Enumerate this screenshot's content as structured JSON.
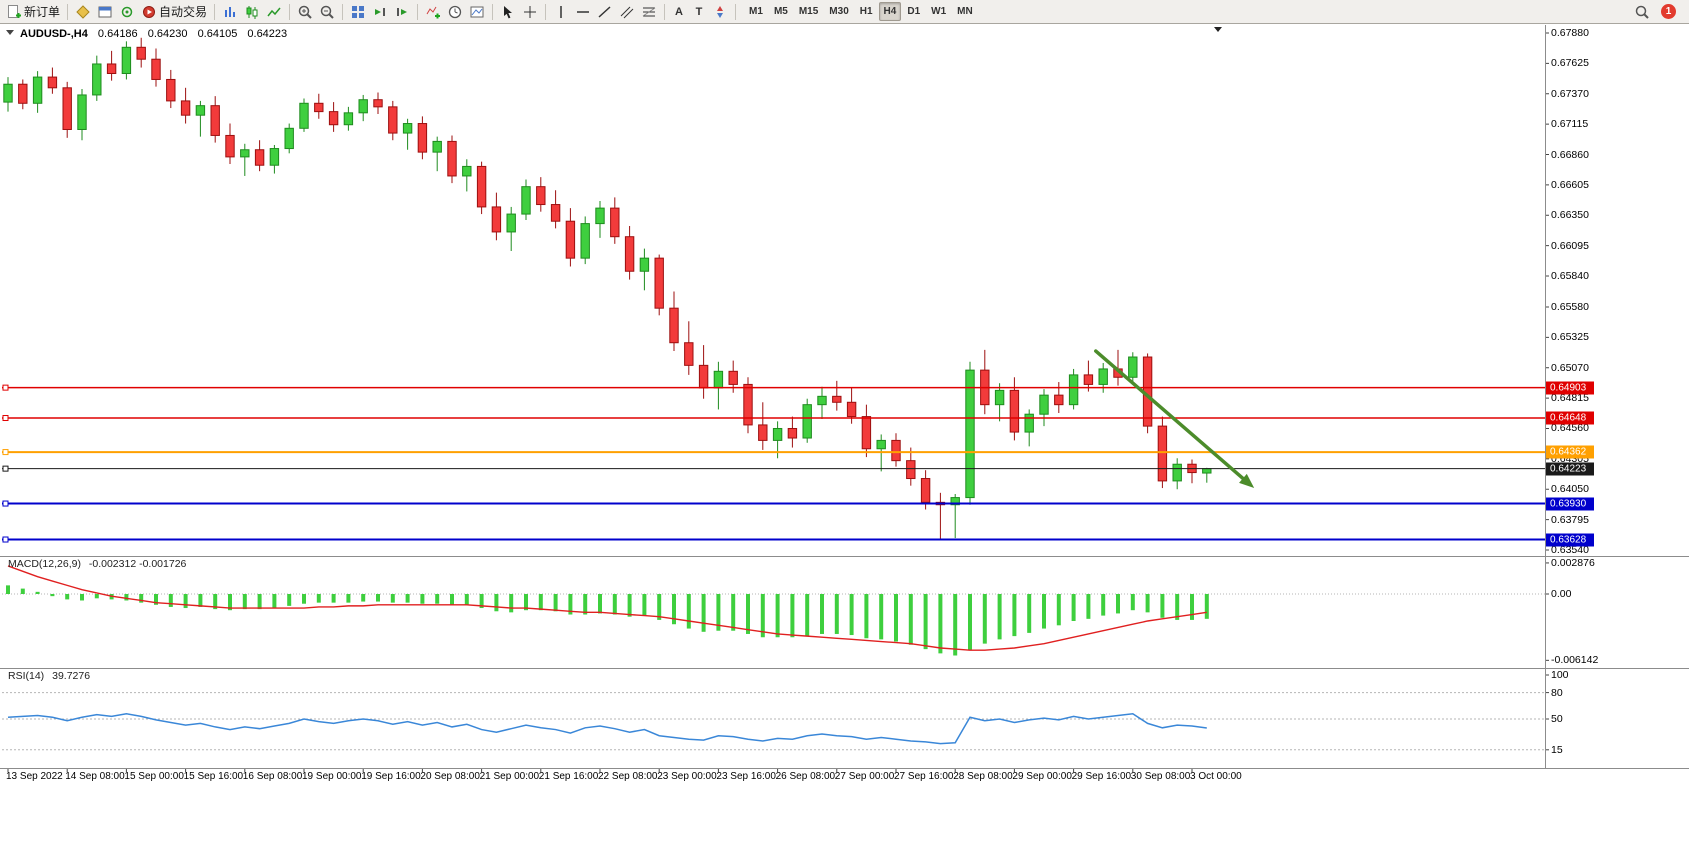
{
  "toolbar": {
    "new_order_label": "新订单",
    "auto_trading_label": "自动交易",
    "timeframes": [
      "M1",
      "M5",
      "M15",
      "M30",
      "H1",
      "H4",
      "D1",
      "W1",
      "MN"
    ],
    "active_timeframe": "H4",
    "notification_count": "1"
  },
  "header": {
    "symbol_period": "AUDUSD-,H4",
    "open": "0.64186",
    "high": "0.64230",
    "low": "0.64105",
    "close": "0.64223"
  },
  "colors": {
    "up": "#3fcf3f",
    "up_border": "#1e8b1e",
    "down": "#f23b3b",
    "down_border": "#9c0f0f",
    "macd_hist": "#3ecf3e",
    "macd_signal": "#e02020",
    "rsi_line": "#3a87d8",
    "grid": "#b5b5b5"
  },
  "chart_data": {
    "type": "candlestick",
    "symbol": "AUDUSD-",
    "timeframe": "H4",
    "price_axis_labels": [
      "0.67880",
      "0.67625",
      "0.67370",
      "0.67115",
      "0.66860",
      "0.66605",
      "0.66350",
      "0.66095",
      "0.65840",
      "0.65580",
      "0.65325",
      "0.65070",
      "0.64815",
      "0.64560",
      "0.64305",
      "0.64050",
      "0.63795",
      "0.63540"
    ],
    "price_axis_top": 0.6788,
    "price_axis_bottom": 0.6354,
    "time_labels": [
      "13 Sep 2022",
      "14 Sep 08:00",
      "15 Sep 00:00",
      "15 Sep 16:00",
      "16 Sep 08:00",
      "19 Sep 00:00",
      "19 Sep 16:00",
      "20 Sep 08:00",
      "21 Sep 00:00",
      "21 Sep 16:00",
      "22 Sep 08:00",
      "23 Sep 00:00",
      "23 Sep 16:00",
      "26 Sep 08:00",
      "27 Sep 00:00",
      "27 Sep 16:00",
      "28 Sep 08:00",
      "29 Sep 00:00",
      "29 Sep 16:00",
      "30 Sep 08:00",
      "3 Oct 00:00"
    ],
    "label_every_n_candles": 4,
    "candles": [
      [
        0.673,
        0.6751,
        0.6722,
        0.6745
      ],
      [
        0.6745,
        0.6749,
        0.6724,
        0.6729
      ],
      [
        0.6729,
        0.6756,
        0.6721,
        0.6751
      ],
      [
        0.6751,
        0.6759,
        0.6737,
        0.6742
      ],
      [
        0.6742,
        0.6747,
        0.67,
        0.6707
      ],
      [
        0.6707,
        0.6741,
        0.6698,
        0.6736
      ],
      [
        0.6736,
        0.6769,
        0.6731,
        0.6762
      ],
      [
        0.6762,
        0.6773,
        0.6748,
        0.6754
      ],
      [
        0.6754,
        0.6781,
        0.6749,
        0.6776
      ],
      [
        0.6776,
        0.6784,
        0.6759,
        0.6766
      ],
      [
        0.6766,
        0.6775,
        0.6743,
        0.6749
      ],
      [
        0.6749,
        0.6757,
        0.6725,
        0.6731
      ],
      [
        0.6731,
        0.6742,
        0.6712,
        0.6719
      ],
      [
        0.6719,
        0.6731,
        0.6701,
        0.6727
      ],
      [
        0.6727,
        0.6735,
        0.6696,
        0.6702
      ],
      [
        0.6702,
        0.6712,
        0.6678,
        0.6684
      ],
      [
        0.6684,
        0.6695,
        0.6668,
        0.669
      ],
      [
        0.669,
        0.6698,
        0.6672,
        0.6677
      ],
      [
        0.6677,
        0.6694,
        0.667,
        0.6691
      ],
      [
        0.6691,
        0.6712,
        0.6687,
        0.6708
      ],
      [
        0.6708,
        0.6733,
        0.6705,
        0.6729
      ],
      [
        0.6729,
        0.6737,
        0.6716,
        0.6722
      ],
      [
        0.6722,
        0.673,
        0.6705,
        0.6711
      ],
      [
        0.6711,
        0.6726,
        0.6706,
        0.6721
      ],
      [
        0.6721,
        0.6736,
        0.6714,
        0.6732
      ],
      [
        0.6732,
        0.6738,
        0.672,
        0.6726
      ],
      [
        0.6726,
        0.6731,
        0.6698,
        0.6704
      ],
      [
        0.6704,
        0.6716,
        0.669,
        0.6712
      ],
      [
        0.6712,
        0.6718,
        0.6682,
        0.6688
      ],
      [
        0.6688,
        0.6701,
        0.6672,
        0.6697
      ],
      [
        0.6697,
        0.6702,
        0.6662,
        0.6668
      ],
      [
        0.6668,
        0.6682,
        0.6655,
        0.6676
      ],
      [
        0.6676,
        0.668,
        0.6636,
        0.6642
      ],
      [
        0.6642,
        0.6654,
        0.6614,
        0.6621
      ],
      [
        0.6621,
        0.6642,
        0.6605,
        0.6636
      ],
      [
        0.6636,
        0.6665,
        0.6631,
        0.6659
      ],
      [
        0.6659,
        0.6667,
        0.6638,
        0.6644
      ],
      [
        0.6644,
        0.6656,
        0.6624,
        0.663
      ],
      [
        0.663,
        0.6641,
        0.6592,
        0.6599
      ],
      [
        0.6599,
        0.6634,
        0.6594,
        0.6628
      ],
      [
        0.6628,
        0.6647,
        0.6616,
        0.6641
      ],
      [
        0.6641,
        0.665,
        0.6611,
        0.6617
      ],
      [
        0.6617,
        0.6626,
        0.6581,
        0.6588
      ],
      [
        0.6588,
        0.6607,
        0.6572,
        0.6599
      ],
      [
        0.6599,
        0.6602,
        0.6551,
        0.6557
      ],
      [
        0.6557,
        0.6571,
        0.6521,
        0.6528
      ],
      [
        0.6528,
        0.6546,
        0.6501,
        0.6509
      ],
      [
        0.6509,
        0.6526,
        0.6481,
        0.649
      ],
      [
        0.649,
        0.6512,
        0.6472,
        0.6504
      ],
      [
        0.6504,
        0.6513,
        0.6486,
        0.6493
      ],
      [
        0.6493,
        0.6499,
        0.6452,
        0.6459
      ],
      [
        0.6459,
        0.6478,
        0.6438,
        0.6446
      ],
      [
        0.6446,
        0.6462,
        0.6431,
        0.6456
      ],
      [
        0.6456,
        0.6466,
        0.644,
        0.6448
      ],
      [
        0.6448,
        0.6481,
        0.6444,
        0.6476
      ],
      [
        0.6476,
        0.6491,
        0.6464,
        0.6483
      ],
      [
        0.6483,
        0.6496,
        0.6471,
        0.6478
      ],
      [
        0.6478,
        0.649,
        0.646,
        0.6466
      ],
      [
        0.6466,
        0.6476,
        0.6432,
        0.6439
      ],
      [
        0.6439,
        0.6451,
        0.642,
        0.6446
      ],
      [
        0.6446,
        0.6452,
        0.6424,
        0.6429
      ],
      [
        0.6429,
        0.644,
        0.6408,
        0.6414
      ],
      [
        0.6414,
        0.6421,
        0.6388,
        0.6394
      ],
      [
        0.6394,
        0.6402,
        0.6363,
        0.6392
      ],
      [
        0.6392,
        0.6401,
        0.6364,
        0.6398
      ],
      [
        0.6398,
        0.6512,
        0.6392,
        0.6505
      ],
      [
        0.6505,
        0.6522,
        0.6468,
        0.6476
      ],
      [
        0.6476,
        0.6494,
        0.6462,
        0.6488
      ],
      [
        0.6488,
        0.6499,
        0.6446,
        0.6453
      ],
      [
        0.6453,
        0.6472,
        0.6441,
        0.6468
      ],
      [
        0.6468,
        0.6489,
        0.6458,
        0.6484
      ],
      [
        0.6484,
        0.6495,
        0.6469,
        0.6476
      ],
      [
        0.6476,
        0.6506,
        0.6472,
        0.6501
      ],
      [
        0.6501,
        0.6513,
        0.6487,
        0.6493
      ],
      [
        0.6493,
        0.6511,
        0.6486,
        0.6506
      ],
      [
        0.6506,
        0.6522,
        0.6492,
        0.6499
      ],
      [
        0.6499,
        0.652,
        0.6494,
        0.6516
      ],
      [
        0.6516,
        0.6519,
        0.6452,
        0.6458
      ],
      [
        0.6458,
        0.6466,
        0.6406,
        0.6412
      ],
      [
        0.6412,
        0.6431,
        0.6405,
        0.6426
      ],
      [
        0.6426,
        0.643,
        0.641,
        0.6419
      ],
      [
        0.64186,
        0.6423,
        0.64105,
        0.64223
      ]
    ],
    "hlines": [
      {
        "price": 0.64903,
        "color": "#e00000",
        "label": "0.64903",
        "width": 1.6
      },
      {
        "price": 0.64648,
        "color": "#e00000",
        "label": "0.64648",
        "width": 1.6
      },
      {
        "price": 0.64362,
        "color": "#ffa000",
        "label": "0.64362",
        "width": 2
      },
      {
        "price": 0.64223,
        "color": "#1a1a1a",
        "label": "0.64223",
        "width": 1
      },
      {
        "price": 0.6393,
        "color": "#0000cc",
        "label": "0.63930",
        "width": 2
      },
      {
        "price": 0.63628,
        "color": "#0000cc",
        "label": "0.63628",
        "width": 2
      }
    ],
    "trend_arrow": {
      "from_index": 73.5,
      "from_price": 0.6521,
      "to_index": 84.2,
      "to_price": 0.6406,
      "color": "#4c8c2b",
      "width": 3.5
    },
    "macd": {
      "name": "MACD(12,26,9)",
      "values_text": "-0.002312 -0.001726",
      "scale_labels": [
        "0.002876",
        "0.00",
        "-0.006142"
      ],
      "histogram": [
        0.0008,
        0.0005,
        0.0002,
        -0.0002,
        -0.0005,
        -0.0006,
        -0.0004,
        -0.0005,
        -0.0006,
        -0.0008,
        -0.001,
        -0.0012,
        -0.0013,
        -0.0012,
        -0.0014,
        -0.0015,
        -0.0014,
        -0.0014,
        -0.0013,
        -0.0011,
        -0.0009,
        -0.0008,
        -0.0008,
        -0.0008,
        -0.0007,
        -0.0007,
        -0.0008,
        -0.0008,
        -0.0009,
        -0.0009,
        -0.001,
        -0.001,
        -0.0013,
        -0.0016,
        -0.0017,
        -0.0015,
        -0.0015,
        -0.0016,
        -0.0019,
        -0.0019,
        -0.0018,
        -0.0019,
        -0.0021,
        -0.002,
        -0.0024,
        -0.0028,
        -0.0032,
        -0.0035,
        -0.0034,
        -0.0034,
        -0.0037,
        -0.004,
        -0.004,
        -0.004,
        -0.0039,
        -0.0037,
        -0.0037,
        -0.0038,
        -0.0041,
        -0.0042,
        -0.0044,
        -0.0047,
        -0.0051,
        -0.0055,
        -0.0057,
        -0.0052,
        -0.0046,
        -0.0042,
        -0.0039,
        -0.0036,
        -0.0032,
        -0.0029,
        -0.0025,
        -0.0023,
        -0.002,
        -0.0018,
        -0.0015,
        -0.0017,
        -0.0022,
        -0.0024,
        -0.0024,
        -0.0023
      ],
      "signal": [
        0.0026,
        0.0021,
        0.0016,
        0.0012,
        0.0008,
        0.0004,
        0.0001,
        -0.0002,
        -0.0004,
        -0.0006,
        -0.0008,
        -0.0009,
        -0.001,
        -0.0011,
        -0.0012,
        -0.0013,
        -0.0013,
        -0.0013,
        -0.0013,
        -0.0013,
        -0.0013,
        -0.0012,
        -0.0012,
        -0.0011,
        -0.0011,
        -0.001,
        -0.001,
        -0.001,
        -0.001,
        -0.001,
        -0.001,
        -0.001,
        -0.0011,
        -0.0012,
        -0.0013,
        -0.0013,
        -0.0014,
        -0.0015,
        -0.0016,
        -0.0017,
        -0.0017,
        -0.0018,
        -0.0019,
        -0.002,
        -0.0021,
        -0.0023,
        -0.0025,
        -0.0027,
        -0.0029,
        -0.0031,
        -0.0033,
        -0.0035,
        -0.0037,
        -0.0038,
        -0.0039,
        -0.004,
        -0.0041,
        -0.0042,
        -0.0043,
        -0.0044,
        -0.0045,
        -0.0046,
        -0.0048,
        -0.005,
        -0.0051,
        -0.0052,
        -0.0052,
        -0.0051,
        -0.005,
        -0.0048,
        -0.0046,
        -0.0043,
        -0.004,
        -0.0037,
        -0.0034,
        -0.0031,
        -0.0028,
        -0.0025,
        -0.0023,
        -0.0021,
        -0.0019,
        -0.0017
      ]
    },
    "rsi": {
      "name": "RSI(14)",
      "value_text": "39.7276",
      "scale_labels": [
        "100",
        "80",
        "50",
        "15"
      ],
      "levels": [
        80,
        50,
        15
      ],
      "values": [
        52,
        53,
        54,
        52,
        48,
        52,
        55,
        53,
        56,
        53,
        49,
        46,
        43,
        45,
        41,
        38,
        41,
        39,
        42,
        45,
        50,
        47,
        45,
        48,
        50,
        48,
        44,
        47,
        43,
        46,
        41,
        44,
        38,
        35,
        39,
        43,
        40,
        38,
        34,
        40,
        42,
        39,
        35,
        38,
        31,
        29,
        27,
        26,
        31,
        30,
        27,
        25,
        28,
        27,
        31,
        33,
        31,
        30,
        27,
        29,
        27,
        25,
        24,
        22,
        23,
        52,
        48,
        50,
        46,
        49,
        51,
        49,
        53,
        50,
        52,
        54,
        56,
        45,
        40,
        43,
        42,
        39.73
      ]
    }
  }
}
